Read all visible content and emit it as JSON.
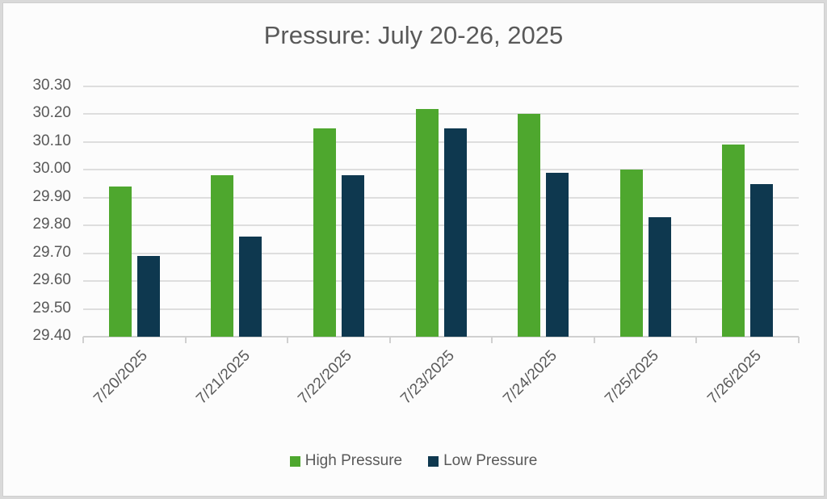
{
  "chart_data": {
    "type": "bar",
    "title": "Pressure:  July 20-26, 2025",
    "xlabel": "",
    "ylabel": "",
    "ylim": [
      29.4,
      30.3
    ],
    "yticks": [
      "30.30",
      "30.20",
      "30.10",
      "30.00",
      "29.90",
      "29.80",
      "29.70",
      "29.60",
      "29.50",
      "29.40"
    ],
    "categories": [
      "7/20/2025",
      "7/21/2025",
      "7/22/2025",
      "7/23/2025",
      "7/24/2025",
      "7/25/2025",
      "7/26/2025"
    ],
    "series": [
      {
        "name": "High Pressure",
        "color": "#4ea72e",
        "values": [
          29.94,
          29.98,
          30.15,
          30.22,
          30.2,
          30.0,
          30.09
        ]
      },
      {
        "name": "Low Pressure",
        "color": "#0e384f",
        "values": [
          29.69,
          29.76,
          29.98,
          30.15,
          29.99,
          29.83,
          29.95
        ]
      }
    ],
    "grid": true,
    "legend_position": "bottom"
  }
}
